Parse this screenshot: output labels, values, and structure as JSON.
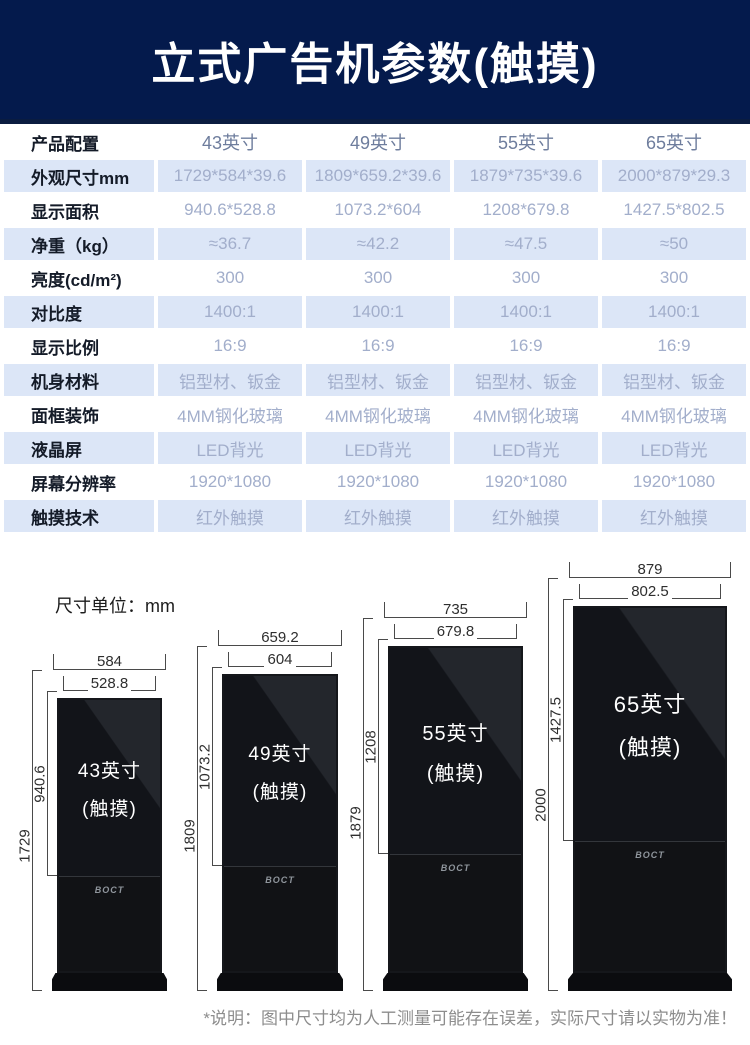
{
  "header": {
    "title": "立式广告机参数(触摸)",
    "bg_color": "#041a4c"
  },
  "table": {
    "stripe_color": "#dce6f7",
    "rows": [
      {
        "label": "产品配置",
        "values": [
          "43英寸",
          "49英寸",
          "55英寸",
          "65英寸"
        ]
      },
      {
        "label": "外观尺寸mm",
        "values": [
          "1729*584*39.6",
          "1809*659.2*39.6",
          "1879*735*39.6",
          "2000*879*29.3"
        ]
      },
      {
        "label": "显示面积",
        "values": [
          "940.6*528.8",
          "1073.2*604",
          "1208*679.8",
          "1427.5*802.5"
        ]
      },
      {
        "label": "净重（kg）",
        "values": [
          "≈36.7",
          "≈42.2",
          "≈47.5",
          "≈50"
        ]
      },
      {
        "label": "亮度(cd/m²)",
        "values": [
          "300",
          "300",
          "300",
          "300"
        ]
      },
      {
        "label": "对比度",
        "values": [
          "1400:1",
          "1400:1",
          "1400:1",
          "1400:1"
        ]
      },
      {
        "label": "显示比例",
        "values": [
          "16:9",
          "16:9",
          "16:9",
          "16:9"
        ]
      },
      {
        "label": "机身材料",
        "values": [
          "铝型材、钣金",
          "铝型材、钣金",
          "铝型材、钣金",
          "铝型材、钣金"
        ]
      },
      {
        "label": "面框装饰",
        "values": [
          "4MM钢化玻璃",
          "4MM钢化玻璃",
          "4MM钢化玻璃",
          "4MM钢化玻璃"
        ]
      },
      {
        "label": "液晶屏",
        "values": [
          "LED背光",
          "LED背光",
          "LED背光",
          "LED背光"
        ]
      },
      {
        "label": "屏幕分辨率",
        "values": [
          "1920*1080",
          "1920*1080",
          "1920*1080",
          "1920*1080"
        ]
      },
      {
        "label": "触摸技术",
        "values": [
          "红外触摸",
          "红外触摸",
          "红外触摸",
          "红外触摸"
        ]
      }
    ]
  },
  "diagram": {
    "unit_label": "尺寸单位：mm",
    "logo": "BOCT",
    "devices": [
      {
        "name_line1": "43英寸",
        "name_line2": "(触摸)",
        "outer_width": "584",
        "screen_width": "528.8",
        "outer_height": "1729",
        "screen_height": "940.6"
      },
      {
        "name_line1": "49英寸",
        "name_line2": "(触摸)",
        "outer_width": "659.2",
        "screen_width": "604",
        "outer_height": "1809",
        "screen_height": "1073.2"
      },
      {
        "name_line1": "55英寸",
        "name_line2": "(触摸)",
        "outer_width": "735",
        "screen_width": "679.8",
        "outer_height": "1879",
        "screen_height": "1208"
      },
      {
        "name_line1": "65英寸",
        "name_line2": "(触摸)",
        "outer_width": "879",
        "screen_width": "802.5",
        "outer_height": "2000",
        "screen_height": "1427.5"
      }
    ],
    "note": "*说明：图中尺寸均为人工测量可能存在误差，实际尺寸请以实物为准！"
  }
}
